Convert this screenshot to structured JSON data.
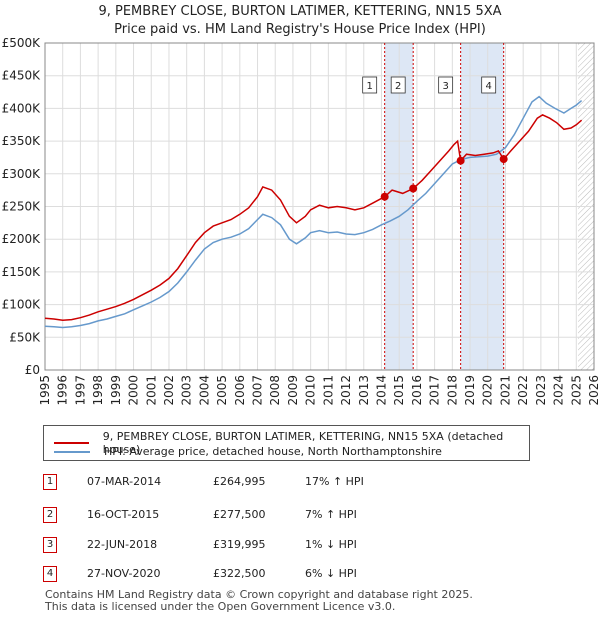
{
  "chart_data": {
    "type": "line",
    "title": "9, PEMBREY CLOSE, BURTON LATIMER, KETTERING, NN15 5XA",
    "subtitle": "Price paid vs. HM Land Registry's House Price Index (HPI)",
    "xlim": [
      1995,
      2026
    ],
    "ylim": [
      0,
      500000
    ],
    "x_ticks": [
      "1995",
      "1996",
      "1997",
      "1998",
      "1999",
      "2000",
      "2001",
      "2002",
      "2003",
      "2004",
      "2005",
      "2006",
      "2007",
      "2008",
      "2009",
      "2010",
      "2011",
      "2012",
      "2013",
      "2014",
      "2015",
      "2016",
      "2017",
      "2018",
      "2019",
      "2020",
      "2021",
      "2022",
      "2023",
      "2024",
      "2025",
      "2026"
    ],
    "y_ticks": [
      {
        "value": 0,
        "label": "£0"
      },
      {
        "value": 50000,
        "label": "£50K"
      },
      {
        "value": 100000,
        "label": "£100K"
      },
      {
        "value": 150000,
        "label": "£150K"
      },
      {
        "value": 200000,
        "label": "£200K"
      },
      {
        "value": 250000,
        "label": "£250K"
      },
      {
        "value": 300000,
        "label": "£300K"
      },
      {
        "value": 350000,
        "label": "£350K"
      },
      {
        "value": 400000,
        "label": "£400K"
      },
      {
        "value": 450000,
        "label": "£450K"
      },
      {
        "value": 500000,
        "label": "£500K"
      }
    ],
    "forecast_start": 2025.1,
    "series": [
      {
        "name": "9, PEMBREY CLOSE, BURTON LATIMER, KETTERING, NN15 5XA (detached house)",
        "color": "#cc0000",
        "points": [
          [
            1995,
            79000
          ],
          [
            1995.5,
            78000
          ],
          [
            1996,
            76000
          ],
          [
            1996.5,
            77000
          ],
          [
            1997,
            80000
          ],
          [
            1997.5,
            84000
          ],
          [
            1998,
            89000
          ],
          [
            1998.5,
            93000
          ],
          [
            1999,
            97000
          ],
          [
            1999.5,
            102000
          ],
          [
            2000,
            108000
          ],
          [
            2000.5,
            115000
          ],
          [
            2001,
            122000
          ],
          [
            2001.5,
            130000
          ],
          [
            2002,
            140000
          ],
          [
            2002.5,
            155000
          ],
          [
            2003,
            175000
          ],
          [
            2003.5,
            195000
          ],
          [
            2004,
            210000
          ],
          [
            2004.5,
            220000
          ],
          [
            2005,
            225000
          ],
          [
            2005.5,
            230000
          ],
          [
            2006,
            238000
          ],
          [
            2006.5,
            248000
          ],
          [
            2007,
            265000
          ],
          [
            2007.3,
            280000
          ],
          [
            2007.8,
            275000
          ],
          [
            2008.3,
            260000
          ],
          [
            2008.8,
            235000
          ],
          [
            2009.2,
            225000
          ],
          [
            2009.7,
            235000
          ],
          [
            2010,
            245000
          ],
          [
            2010.5,
            252000
          ],
          [
            2011,
            248000
          ],
          [
            2011.5,
            250000
          ],
          [
            2012,
            248000
          ],
          [
            2012.5,
            245000
          ],
          [
            2013,
            248000
          ],
          [
            2013.5,
            255000
          ],
          [
            2014.18,
            264995
          ],
          [
            2014.6,
            275000
          ],
          [
            2015.2,
            270000
          ],
          [
            2015.79,
            277500
          ],
          [
            2016.3,
            290000
          ],
          [
            2016.8,
            305000
          ],
          [
            2017.3,
            320000
          ],
          [
            2017.8,
            335000
          ],
          [
            2018.1,
            345000
          ],
          [
            2018.3,
            350000
          ],
          [
            2018.47,
            319995
          ],
          [
            2018.8,
            330000
          ],
          [
            2019.3,
            328000
          ],
          [
            2019.8,
            330000
          ],
          [
            2020.3,
            332000
          ],
          [
            2020.6,
            335000
          ],
          [
            2020.9,
            322500
          ],
          [
            2021.3,
            335000
          ],
          [
            2021.8,
            350000
          ],
          [
            2022.3,
            365000
          ],
          [
            2022.8,
            385000
          ],
          [
            2023.1,
            390000
          ],
          [
            2023.5,
            385000
          ],
          [
            2023.9,
            378000
          ],
          [
            2024.3,
            368000
          ],
          [
            2024.7,
            370000
          ],
          [
            2025.0,
            375000
          ],
          [
            2025.3,
            382000
          ]
        ]
      },
      {
        "name": "HPI: Average price, detached house, North Northamptonshire",
        "color": "#6699cc",
        "points": [
          [
            1995,
            67000
          ],
          [
            1995.5,
            66000
          ],
          [
            1996,
            65000
          ],
          [
            1996.5,
            66000
          ],
          [
            1997,
            68000
          ],
          [
            1997.5,
            71000
          ],
          [
            1998,
            75000
          ],
          [
            1998.5,
            78000
          ],
          [
            1999,
            82000
          ],
          [
            1999.5,
            86000
          ],
          [
            2000,
            92000
          ],
          [
            2000.5,
            98000
          ],
          [
            2001,
            104000
          ],
          [
            2001.5,
            111000
          ],
          [
            2002,
            120000
          ],
          [
            2002.5,
            133000
          ],
          [
            2003,
            150000
          ],
          [
            2003.5,
            168000
          ],
          [
            2004,
            185000
          ],
          [
            2004.5,
            195000
          ],
          [
            2005,
            200000
          ],
          [
            2005.5,
            203000
          ],
          [
            2006,
            208000
          ],
          [
            2006.5,
            216000
          ],
          [
            2007,
            230000
          ],
          [
            2007.3,
            238000
          ],
          [
            2007.8,
            233000
          ],
          [
            2008.3,
            222000
          ],
          [
            2008.8,
            200000
          ],
          [
            2009.2,
            193000
          ],
          [
            2009.7,
            202000
          ],
          [
            2010,
            210000
          ],
          [
            2010.5,
            213000
          ],
          [
            2011,
            210000
          ],
          [
            2011.5,
            211000
          ],
          [
            2012,
            208000
          ],
          [
            2012.5,
            207000
          ],
          [
            2013,
            210000
          ],
          [
            2013.5,
            215000
          ],
          [
            2014,
            222000
          ],
          [
            2014.5,
            228000
          ],
          [
            2015,
            235000
          ],
          [
            2015.5,
            245000
          ],
          [
            2016,
            258000
          ],
          [
            2016.5,
            270000
          ],
          [
            2017,
            285000
          ],
          [
            2017.5,
            300000
          ],
          [
            2018,
            315000
          ],
          [
            2018.5,
            322000
          ],
          [
            2019,
            325000
          ],
          [
            2019.5,
            326000
          ],
          [
            2020,
            327000
          ],
          [
            2020.5,
            330000
          ],
          [
            2021,
            340000
          ],
          [
            2021.5,
            360000
          ],
          [
            2022,
            385000
          ],
          [
            2022.5,
            410000
          ],
          [
            2022.9,
            418000
          ],
          [
            2023.3,
            408000
          ],
          [
            2023.8,
            400000
          ],
          [
            2024.3,
            393000
          ],
          [
            2024.7,
            400000
          ],
          [
            2025.0,
            405000
          ],
          [
            2025.3,
            412000
          ]
        ]
      }
    ],
    "transactions": [
      {
        "id": "1",
        "year": 2014.18,
        "price": 264995,
        "date": "07-MAR-2014",
        "price_label": "£264,995",
        "hpi": "17% ↑ HPI"
      },
      {
        "id": "2",
        "year": 2015.79,
        "price": 277500,
        "date": "16-OCT-2015",
        "price_label": "£277,500",
        "hpi": "7% ↑ HPI"
      },
      {
        "id": "3",
        "year": 2018.47,
        "price": 319995,
        "date": "22-JUN-2018",
        "price_label": "£319,995",
        "hpi": "1% ↓ HPI"
      },
      {
        "id": "4",
        "year": 2020.9,
        "price": 322500,
        "date": "27-NOV-2020",
        "price_label": "£322,500",
        "hpi": "6% ↓ HPI"
      }
    ],
    "highlight_spans": [
      [
        2014.18,
        2015.79
      ],
      [
        2018.47,
        2020.9
      ]
    ],
    "legend": [
      {
        "label": "9, PEMBREY CLOSE, BURTON LATIMER, KETTERING, NN15 5XA (detached house)",
        "color": "#cc0000"
      },
      {
        "label": "HPI: Average price, detached house, North Northamptonshire",
        "color": "#6699cc"
      }
    ]
  },
  "colors": {
    "price_paid": "#cc0000",
    "hpi": "#6699cc",
    "highlight": "#dde7f5",
    "grid": "#dddddd"
  },
  "footer": {
    "line1": "Contains HM Land Registry data © Crown copyright and database right 2025.",
    "line2": "This data is licensed under the Open Government Licence v3.0."
  }
}
